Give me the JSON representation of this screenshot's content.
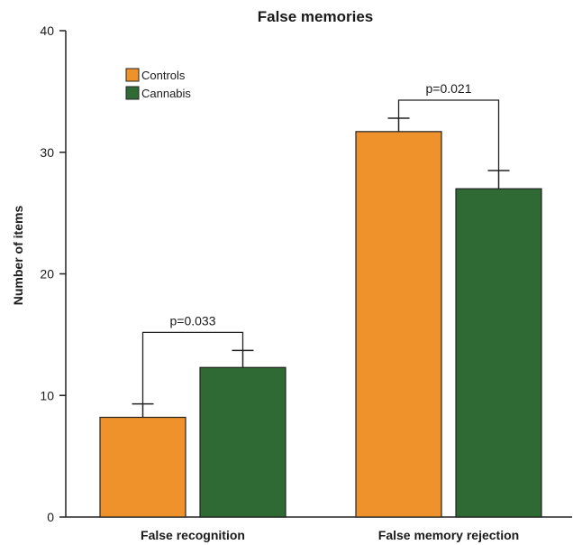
{
  "chart_data": {
    "type": "bar",
    "title": "False memories",
    "xlabel": "",
    "ylabel": "Number of items",
    "ylim": [
      0,
      40
    ],
    "yticks": [
      "0",
      "10",
      "20",
      "30",
      "40"
    ],
    "categories": [
      "False recognition",
      "False memory rejection"
    ],
    "series": [
      {
        "name": "Controls",
        "values": [
          8.2,
          31.7
        ],
        "errors": [
          1.1,
          1.1
        ],
        "color": "#f0922b"
      },
      {
        "name": "Cannabis",
        "values": [
          12.3,
          27.0
        ],
        "errors": [
          1.4,
          1.5
        ],
        "color": "#2f6a34"
      }
    ],
    "annotations": [
      {
        "category_index": 0,
        "text": "p=0.033"
      },
      {
        "category_index": 1,
        "text": "p=0.021"
      }
    ],
    "legend": "top-left",
    "grid": false
  }
}
